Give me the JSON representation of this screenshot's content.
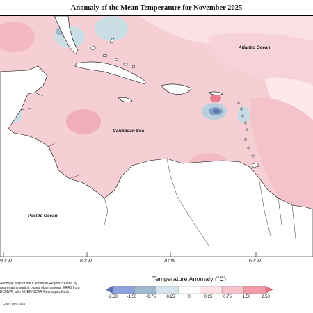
{
  "title": "Anomaly of the Mean Temperature for November 2025",
  "labels": {
    "atlantic": "Atlantic Ocean",
    "caribbean": "Caribbean Sea",
    "pacific": "Pacific Ocean"
  },
  "longitude_ticks": [
    "90°W",
    "80°W",
    "70°W",
    "60°W"
  ],
  "footnote": "Anomaly Map of the Caribbean Region created by aggregating station based observations, ERA5 from ECMWF, with NCEP/NCAR Reanalysis Data.",
  "credit": "CIMH Dec-2025",
  "legend": {
    "title": "Temperature Anomaly (°C)",
    "ticks": [
      "-2.50",
      "-1.50",
      "-0.75",
      "-0.25",
      "0",
      "0.25",
      "0.75",
      "1.50",
      "2.50"
    ],
    "colors": [
      "#5a6fb8",
      "#8ea2e0",
      "#9fb7cf",
      "#d4e4ea",
      "#ffffff",
      "#fde3e7",
      "#f7c3cb",
      "#f29aa6",
      "#ec6f80"
    ]
  },
  "colors": {
    "warm_light": "#fbe0e4",
    "warm_mid": "#f4c0c8",
    "warm_strong": "#ee98a4",
    "cool_light": "#c9dde5",
    "cool_mid": "#8fb1c7",
    "cool_strong": "#5a7fa8",
    "land": "#ffffff",
    "coast": "#000000"
  }
}
